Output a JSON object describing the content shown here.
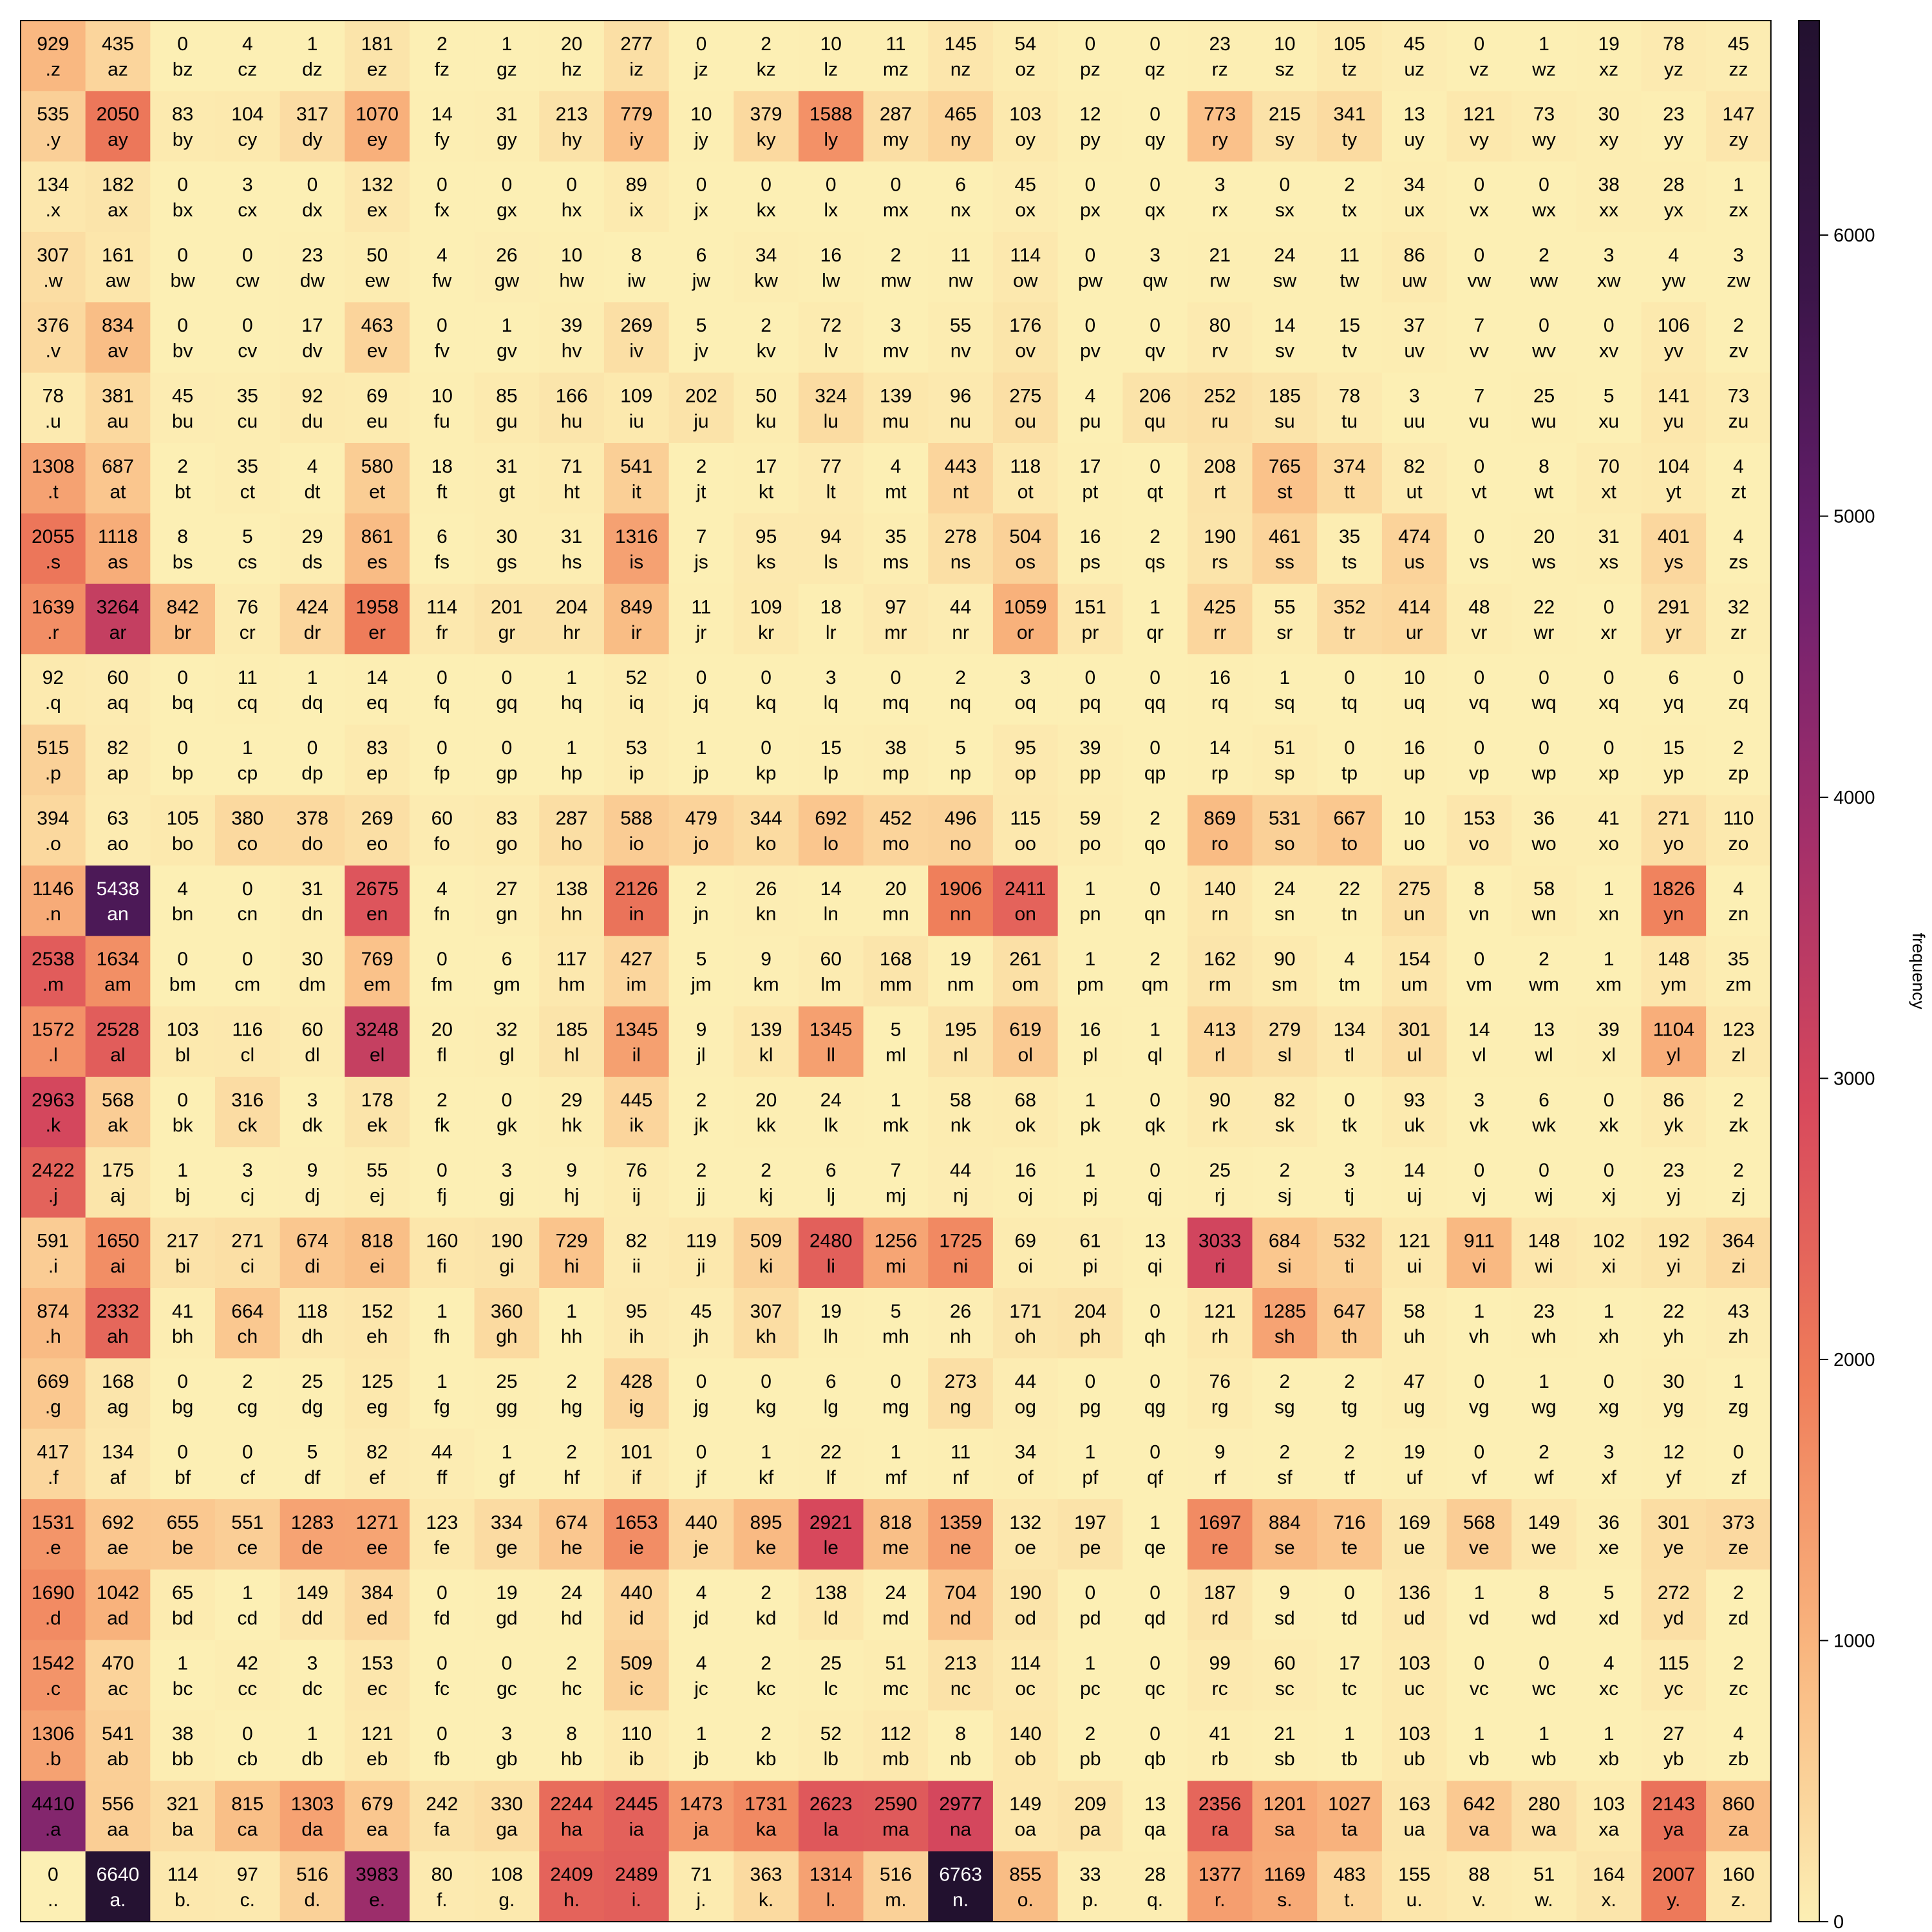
{
  "chart_data": {
    "type": "heatmap",
    "title": "",
    "xlabel": "",
    "ylabel": "",
    "colorbar": {
      "label": "frequency",
      "ticks": [
        0,
        1000,
        2000,
        3000,
        4000,
        5000,
        6000
      ],
      "range": [
        0,
        6763
      ],
      "colormap": [
        "#fcefb4",
        "#f9b67f",
        "#ef7d5a",
        "#d8495c",
        "#a32f6a",
        "#6a1f6f",
        "#3b1549",
        "#22112f"
      ]
    },
    "columns": [
      ".",
      "a",
      "b",
      "c",
      "d",
      "e",
      "f",
      "g",
      "h",
      "i",
      "j",
      "k",
      "l",
      "m",
      "n",
      "o",
      "p",
      "q",
      "r",
      "s",
      "t",
      "u",
      "v",
      "w",
      "x",
      "y",
      "z"
    ],
    "rows": [
      "z",
      "y",
      "x",
      "w",
      "v",
      "u",
      "t",
      "s",
      "r",
      "q",
      "p",
      "o",
      "n",
      "m",
      "l",
      "k",
      "j",
      "i",
      "h",
      "g",
      "f",
      "e",
      "d",
      "c",
      "b",
      "a",
      "."
    ],
    "values": [
      [
        929,
        435,
        0,
        4,
        1,
        181,
        2,
        1,
        20,
        277,
        0,
        2,
        10,
        11,
        145,
        54,
        0,
        0,
        23,
        10,
        105,
        45,
        0,
        1,
        19,
        78,
        45
      ],
      [
        535,
        2050,
        83,
        104,
        317,
        1070,
        14,
        31,
        213,
        779,
        10,
        379,
        1588,
        287,
        465,
        103,
        12,
        0,
        773,
        215,
        341,
        13,
        121,
        73,
        30,
        23,
        147
      ],
      [
        134,
        182,
        0,
        3,
        0,
        132,
        0,
        0,
        0,
        89,
        0,
        0,
        0,
        0,
        6,
        45,
        0,
        0,
        3,
        0,
        2,
        34,
        0,
        0,
        38,
        28,
        1
      ],
      [
        307,
        161,
        0,
        0,
        23,
        50,
        4,
        26,
        10,
        8,
        6,
        34,
        16,
        2,
        11,
        114,
        0,
        3,
        21,
        24,
        11,
        86,
        0,
        2,
        3,
        4,
        3
      ],
      [
        376,
        834,
        0,
        0,
        17,
        463,
        0,
        1,
        39,
        269,
        5,
        2,
        72,
        3,
        55,
        176,
        0,
        0,
        80,
        14,
        15,
        37,
        7,
        0,
        0,
        106,
        2
      ],
      [
        78,
        381,
        45,
        35,
        92,
        69,
        10,
        85,
        166,
        109,
        202,
        50,
        324,
        139,
        96,
        275,
        4,
        206,
        252,
        185,
        78,
        3,
        7,
        25,
        5,
        141,
        73
      ],
      [
        1308,
        687,
        2,
        35,
        4,
        580,
        18,
        31,
        71,
        541,
        2,
        17,
        77,
        4,
        443,
        118,
        17,
        0,
        208,
        765,
        374,
        82,
        0,
        8,
        70,
        104,
        4
      ],
      [
        2055,
        1118,
        8,
        5,
        29,
        861,
        6,
        30,
        31,
        1316,
        7,
        95,
        94,
        35,
        278,
        504,
        16,
        2,
        190,
        461,
        35,
        474,
        0,
        20,
        31,
        401,
        4
      ],
      [
        1639,
        3264,
        842,
        76,
        424,
        1958,
        114,
        201,
        204,
        849,
        11,
        109,
        18,
        97,
        44,
        1059,
        151,
        1,
        425,
        55,
        352,
        414,
        48,
        22,
        0,
        291,
        32
      ],
      [
        92,
        60,
        0,
        11,
        1,
        14,
        0,
        0,
        1,
        52,
        0,
        0,
        3,
        0,
        2,
        3,
        0,
        0,
        16,
        1,
        0,
        10,
        0,
        0,
        0,
        6,
        0
      ],
      [
        515,
        82,
        0,
        1,
        0,
        83,
        0,
        0,
        1,
        53,
        1,
        0,
        15,
        38,
        5,
        95,
        39,
        0,
        14,
        51,
        0,
        16,
        0,
        0,
        0,
        15,
        2
      ],
      [
        394,
        63,
        105,
        380,
        378,
        269,
        60,
        83,
        287,
        588,
        479,
        344,
        692,
        452,
        496,
        115,
        59,
        2,
        869,
        531,
        667,
        10,
        153,
        36,
        41,
        271,
        110
      ],
      [
        1146,
        5438,
        4,
        0,
        31,
        2675,
        4,
        27,
        138,
        2126,
        2,
        26,
        14,
        20,
        1906,
        2411,
        1,
        0,
        140,
        24,
        22,
        275,
        8,
        58,
        1,
        1826,
        4
      ],
      [
        2538,
        1634,
        0,
        0,
        30,
        769,
        0,
        6,
        117,
        427,
        5,
        9,
        60,
        168,
        19,
        261,
        1,
        2,
        162,
        90,
        4,
        154,
        0,
        2,
        1,
        148,
        35
      ],
      [
        1572,
        2528,
        103,
        116,
        60,
        3248,
        20,
        32,
        185,
        1345,
        9,
        139,
        1345,
        5,
        195,
        619,
        16,
        1,
        413,
        279,
        134,
        301,
        14,
        13,
        39,
        1104,
        123
      ],
      [
        2963,
        568,
        0,
        316,
        3,
        178,
        2,
        0,
        29,
        445,
        2,
        20,
        24,
        1,
        58,
        68,
        1,
        0,
        90,
        82,
        0,
        93,
        3,
        6,
        0,
        86,
        2
      ],
      [
        2422,
        175,
        1,
        3,
        9,
        55,
        0,
        3,
        9,
        76,
        2,
        2,
        6,
        7,
        44,
        16,
        1,
        0,
        25,
        2,
        3,
        14,
        0,
        0,
        0,
        23,
        2
      ],
      [
        591,
        1650,
        217,
        271,
        674,
        818,
        160,
        190,
        729,
        82,
        119,
        509,
        2480,
        1256,
        1725,
        69,
        61,
        13,
        3033,
        684,
        532,
        121,
        911,
        148,
        102,
        192,
        364
      ],
      [
        874,
        2332,
        41,
        664,
        118,
        152,
        1,
        360,
        1,
        95,
        45,
        307,
        19,
        5,
        26,
        171,
        204,
        0,
        121,
        1285,
        647,
        58,
        1,
        23,
        1,
        22,
        43
      ],
      [
        669,
        168,
        0,
        2,
        25,
        125,
        1,
        25,
        2,
        428,
        0,
        0,
        6,
        0,
        273,
        44,
        0,
        0,
        76,
        2,
        2,
        47,
        0,
        1,
        0,
        30,
        1
      ],
      [
        417,
        134,
        0,
        0,
        5,
        82,
        44,
        1,
        2,
        101,
        0,
        1,
        22,
        1,
        11,
        34,
        1,
        0,
        9,
        2,
        2,
        19,
        0,
        2,
        3,
        12,
        0
      ],
      [
        1531,
        692,
        655,
        551,
        1283,
        1271,
        123,
        334,
        674,
        1653,
        440,
        895,
        2921,
        818,
        1359,
        132,
        197,
        1,
        1697,
        884,
        716,
        169,
        568,
        149,
        36,
        301,
        373
      ],
      [
        1690,
        1042,
        65,
        1,
        149,
        384,
        0,
        19,
        24,
        440,
        4,
        2,
        138,
        24,
        704,
        190,
        0,
        0,
        187,
        9,
        0,
        136,
        1,
        8,
        5,
        272,
        2
      ],
      [
        1542,
        470,
        1,
        42,
        3,
        153,
        0,
        0,
        2,
        509,
        4,
        2,
        25,
        51,
        213,
        114,
        1,
        0,
        99,
        60,
        17,
        103,
        0,
        0,
        4,
        115,
        2
      ],
      [
        1306,
        541,
        38,
        0,
        1,
        121,
        0,
        3,
        8,
        110,
        1,
        2,
        52,
        112,
        8,
        140,
        2,
        0,
        41,
        21,
        1,
        103,
        1,
        1,
        1,
        27,
        4
      ],
      [
        4410,
        556,
        321,
        815,
        1303,
        679,
        242,
        330,
        2244,
        2445,
        1473,
        1731,
        2623,
        2590,
        2977,
        149,
        209,
        13,
        2356,
        1201,
        1027,
        163,
        642,
        280,
        103,
        2143,
        860
      ],
      [
        0,
        6640,
        114,
        97,
        516,
        3983,
        80,
        108,
        2409,
        2489,
        71,
        363,
        1314,
        516,
        6763,
        855,
        33,
        28,
        1377,
        1169,
        483,
        155,
        88,
        51,
        164,
        2007,
        160
      ]
    ]
  }
}
